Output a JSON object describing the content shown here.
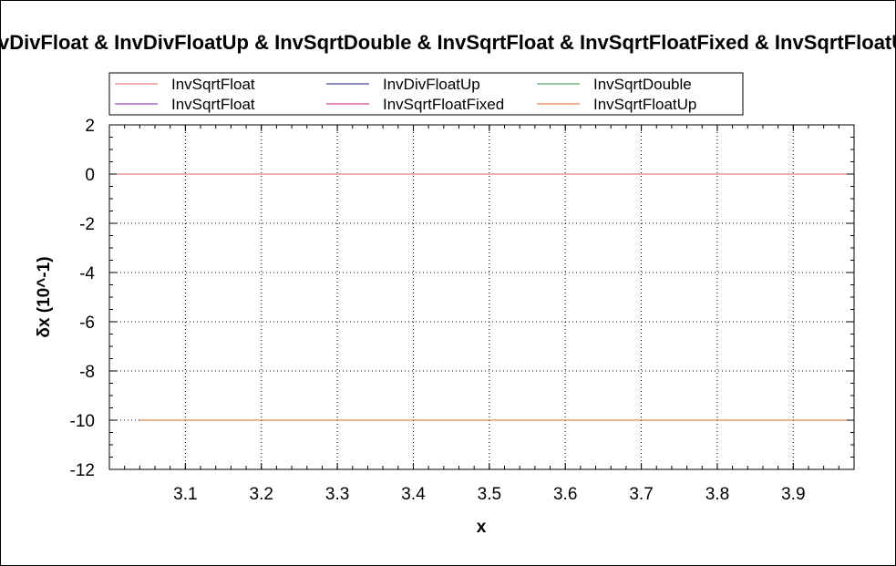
{
  "chart_data": {
    "type": "line",
    "title": "InvDivFloat & InvDivFloatUp & InvSqrtDouble & InvSqrtFloat & InvSqrtFloatFixed & InvSqrtFloatUp",
    "xlabel": "x",
    "ylabel": "δx (10^-1)",
    "xlim": [
      3.0,
      3.98
    ],
    "ylim": [
      -12,
      2
    ],
    "x_ticks": [
      "3.1",
      "3.2",
      "3.3",
      "3.4",
      "3.5",
      "3.6",
      "3.7",
      "3.8",
      "3.9"
    ],
    "y_ticks": [
      "2",
      "0",
      "-2",
      "-4",
      "-6",
      "-8",
      "-10",
      "-12"
    ],
    "grid": true,
    "legend_position": "top",
    "series": [
      {
        "name": "InvSqrtFloat",
        "color": "#e06060",
        "x": [
          3.0,
          3.98
        ],
        "values": [
          0,
          0
        ]
      },
      {
        "name": "InvDivFloatUp",
        "color": "#1a1a8c",
        "x": [
          3.04,
          3.98
        ],
        "values": [
          -10,
          -10
        ]
      },
      {
        "name": "InvSqrtDouble",
        "color": "#2e8b3c",
        "x": [
          3.04,
          3.98
        ],
        "values": [
          -10,
          -10
        ]
      },
      {
        "name": "InvSqrtFloat",
        "color": "#7a1fb0",
        "x": [
          3.04,
          3.98
        ],
        "values": [
          -10,
          -10
        ]
      },
      {
        "name": "InvSqrtFloatFixed",
        "color": "#d0207a",
        "x": [
          3.04,
          3.98
        ],
        "values": [
          -10,
          -10
        ]
      },
      {
        "name": "InvSqrtFloatUp",
        "color": "#e06a20",
        "x": [
          3.04,
          3.98
        ],
        "values": [
          -10,
          -10
        ]
      }
    ]
  }
}
